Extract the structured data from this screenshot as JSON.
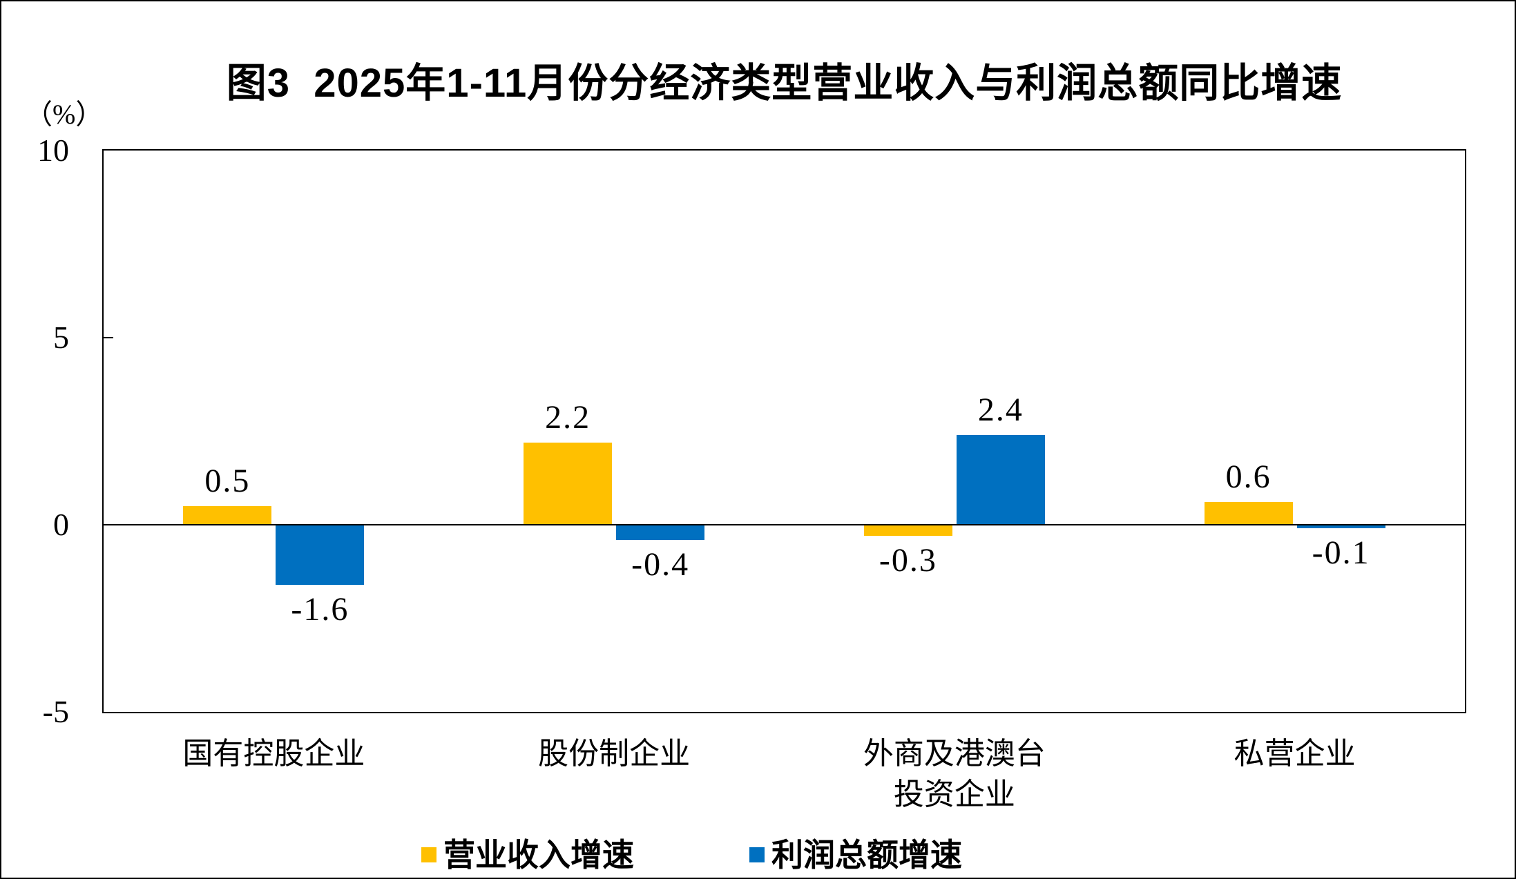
{
  "chart_data": {
    "type": "bar",
    "title": "图3  2025年1-11月份分经济类型营业收入与利润总额同比增速",
    "ylabel": "（%）",
    "categories": [
      "国有控股企业",
      "股份制企业",
      "外商及港澳台\n投资企业",
      "私营企业"
    ],
    "series": [
      {
        "name": "营业收入增速",
        "color": "#FFC000",
        "values": [
          0.5,
          2.2,
          -0.3,
          0.6
        ]
      },
      {
        "name": "利润总额增速",
        "color": "#0070C0",
        "values": [
          -1.6,
          -0.4,
          2.4,
          -0.1
        ]
      }
    ],
    "data_labels": [
      "0.5",
      "-1.6",
      "2.2",
      "-0.4",
      "-0.3",
      "2.4",
      "0.6",
      "-0.1"
    ],
    "ylim": [
      -5,
      10
    ],
    "yticks": [
      10,
      5,
      0,
      -5
    ],
    "grid": false,
    "legend_position": "bottom"
  },
  "colors": {
    "revenue_bar": "#FFC000",
    "profit_bar": "#0070C0",
    "axis": "#000000",
    "background": "#FFFFFF"
  }
}
